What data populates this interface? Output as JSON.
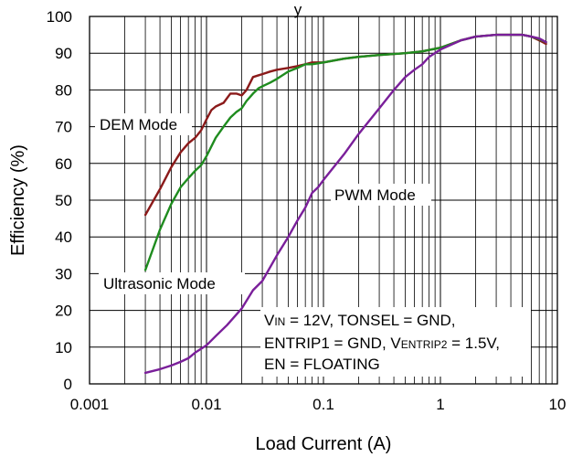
{
  "chart_data": {
    "type": "line",
    "title": "",
    "xlabel": "Load Current (A)",
    "ylabel": "Efficiency (%)",
    "x_scale": "log",
    "xlim": [
      0.001,
      10
    ],
    "ylim": [
      0,
      100
    ],
    "x_ticks": [
      0.001,
      0.01,
      0.1,
      1,
      10
    ],
    "x_tick_labels": [
      "0.001",
      "0.01",
      "0.1",
      "1",
      "10"
    ],
    "y_ticks": [
      0,
      10,
      20,
      30,
      40,
      50,
      60,
      70,
      80,
      90,
      100
    ],
    "y_tick_labels": [
      "0",
      "10",
      "20",
      "30",
      "40",
      "50",
      "60",
      "70",
      "80",
      "90",
      "100"
    ],
    "grid": true,
    "series": [
      {
        "name": "DEM Mode",
        "color": "#8b1a1a",
        "x": [
          0.003,
          0.004,
          0.005,
          0.006,
          0.007,
          0.008,
          0.009,
          0.01,
          0.011,
          0.012,
          0.014,
          0.016,
          0.018,
          0.02,
          0.022,
          0.025,
          0.028,
          0.03,
          0.035,
          0.04,
          0.05,
          0.06,
          0.07,
          0.08,
          0.1,
          0.15,
          0.2,
          0.3,
          0.5,
          0.7,
          1,
          1.5,
          2,
          3,
          4,
          5,
          6,
          7,
          8
        ],
        "y": [
          46,
          53,
          59,
          63,
          65.5,
          67,
          69,
          72,
          74.5,
          75.5,
          76.5,
          79,
          79,
          78.5,
          80,
          83.5,
          84,
          84.3,
          85,
          85.5,
          86,
          86.5,
          87,
          87.5,
          87.5,
          88.5,
          89,
          89.5,
          90,
          90.5,
          91.5,
          93.5,
          94.5,
          95,
          95,
          95,
          94.5,
          93.5,
          92.5
        ]
      },
      {
        "name": "Ultrasonic Mode",
        "color": "#1f8c1f",
        "x": [
          0.003,
          0.004,
          0.005,
          0.006,
          0.007,
          0.008,
          0.009,
          0.01,
          0.012,
          0.014,
          0.016,
          0.018,
          0.02,
          0.022,
          0.025,
          0.028,
          0.03,
          0.035,
          0.04,
          0.05,
          0.06,
          0.07,
          0.08,
          0.1,
          0.15,
          0.2,
          0.3,
          0.5,
          0.7,
          1,
          1.5,
          2,
          3,
          4,
          5,
          6,
          7,
          8
        ],
        "y": [
          31,
          42,
          49,
          53.5,
          56,
          58,
          59.5,
          62,
          67,
          70,
          72.5,
          74,
          75,
          77,
          79,
          80.5,
          81,
          82,
          83,
          85,
          86,
          87,
          87,
          87.5,
          88.5,
          89,
          89.5,
          90,
          90.5,
          91.5,
          93.5,
          94.5,
          95,
          95,
          95,
          94.5,
          93.8,
          93
        ]
      },
      {
        "name": "PWM Mode",
        "color": "#7a1f9a",
        "x": [
          0.003,
          0.004,
          0.005,
          0.006,
          0.007,
          0.008,
          0.01,
          0.012,
          0.015,
          0.02,
          0.025,
          0.03,
          0.04,
          0.05,
          0.06,
          0.07,
          0.08,
          0.09,
          0.1,
          0.15,
          0.2,
          0.3,
          0.4,
          0.5,
          0.6,
          0.7,
          0.8,
          1,
          1.5,
          2,
          3,
          4,
          5,
          6,
          7,
          8
        ],
        "y": [
          3,
          4,
          5,
          6,
          7,
          8.5,
          10.5,
          13,
          16,
          20.5,
          25.5,
          28,
          35,
          40,
          44.5,
          48,
          52,
          53.5,
          55.5,
          62.5,
          68,
          75,
          80,
          83.5,
          85.5,
          87,
          89,
          91,
          93.5,
          94.5,
          95,
          95,
          95,
          94.5,
          94,
          93
        ]
      }
    ],
    "annotations": [
      {
        "id": "dem",
        "text": "DEM Mode"
      },
      {
        "id": "ultra",
        "text": "Ultrasonic Mode"
      },
      {
        "id": "pwm",
        "text": "PWM Mode"
      },
      {
        "id": "cond1",
        "text": "V_IN = 12V, TONSEL = GND,"
      },
      {
        "id": "cond2",
        "text": "ENTRIP1 = GND, V_ENTRIP2 = 1.5V,"
      },
      {
        "id": "cond3",
        "text": "EN = FLOATING"
      }
    ]
  },
  "conditions": {
    "line1_v": "V",
    "line1_sub": "IN",
    "line1_rest": " = 12V, TONSEL = GND,",
    "line2_pre": "ENTRIP1 = GND, V",
    "line2_sub": "ENTRIP2",
    "line2_rest": " = 1.5V,",
    "line3": "EN = FLOATING"
  },
  "labels": {
    "dem": "DEM Mode",
    "ultrasonic": "Ultrasonic Mode",
    "pwm": "PWM Mode",
    "title_fragment": "y"
  }
}
